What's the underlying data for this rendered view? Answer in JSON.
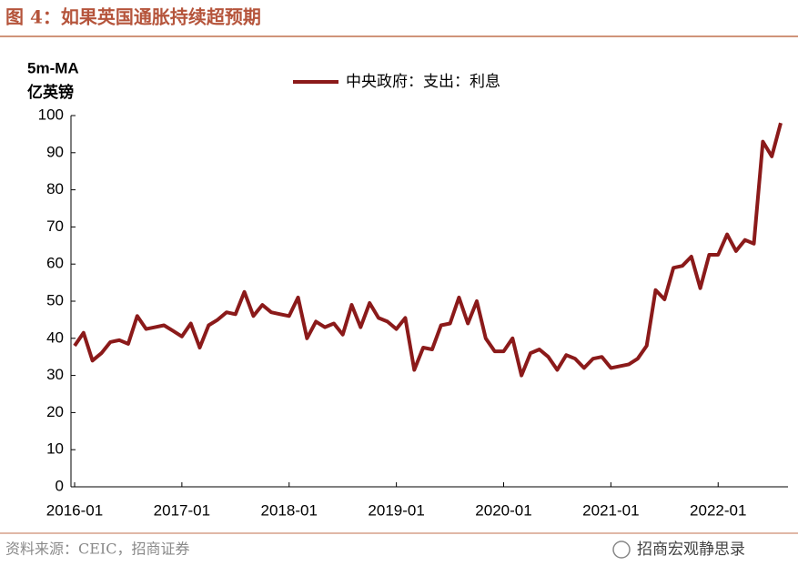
{
  "chart_data": {
    "type": "line",
    "title": "图 4：如果英国通胀持续超预期",
    "y_label_line1": "5m-MA",
    "y_label_line2": "亿英镑",
    "source": "资料来源：CEIC，招商证券",
    "watermark": "招商宏观静思录",
    "categories": [
      "2016-01",
      null,
      null,
      null,
      null,
      null,
      null,
      null,
      null,
      null,
      null,
      null,
      "2017-01",
      null,
      null,
      null,
      null,
      null,
      null,
      null,
      null,
      null,
      null,
      null,
      "2018-01",
      null,
      null,
      null,
      null,
      null,
      null,
      null,
      null,
      null,
      null,
      null,
      "2019-01",
      null,
      null,
      null,
      null,
      null,
      null,
      null,
      null,
      null,
      null,
      null,
      "2020-01",
      null,
      null,
      null,
      null,
      null,
      null,
      null,
      null,
      null,
      null,
      null,
      "2021-01",
      null,
      null,
      null,
      null,
      null,
      null,
      null,
      null,
      null,
      null,
      null,
      "2022-01",
      null,
      null,
      null,
      null,
      null,
      null,
      null
    ],
    "series": [
      {
        "name": "中央政府：支出：利息",
        "color": "#8b1a1a",
        "values": [
          38,
          41.5,
          34,
          36,
          39,
          39.5,
          38.5,
          46,
          42.5,
          43,
          43.5,
          42,
          40.5,
          44,
          37.5,
          43.5,
          45,
          47,
          46.5,
          52.5,
          46,
          49,
          47,
          46.5,
          46,
          51,
          40,
          44.5,
          43,
          44,
          41,
          49,
          43,
          49.5,
          45.5,
          44.5,
          42.5,
          45.5,
          31.5,
          37.5,
          37,
          43.5,
          44,
          51,
          44,
          50,
          40,
          36.5,
          36.5,
          40,
          30,
          36,
          37,
          35,
          31.5,
          35.5,
          34.5,
          32,
          34.5,
          35,
          32,
          32.5,
          33,
          34.5,
          38,
          53,
          50.5,
          59,
          59.5,
          62,
          53.5,
          62.5,
          62.5,
          68,
          63.5,
          66.5,
          65.5,
          93,
          89,
          98
        ]
      }
    ],
    "ylim": [
      0,
      100
    ],
    "yticks": [
      0,
      10,
      20,
      30,
      40,
      50,
      60,
      70,
      80,
      90,
      100
    ]
  }
}
